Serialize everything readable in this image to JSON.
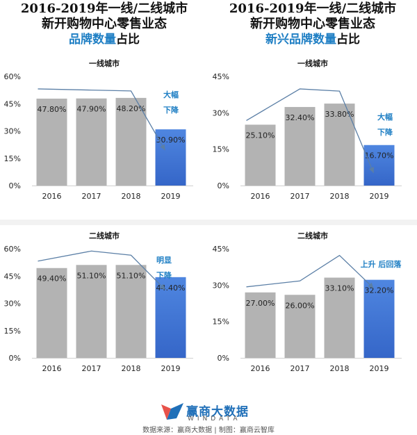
{
  "headings": [
    {
      "line1": "2016-2019年一线/二线城市",
      "line2": "新开购物中心零售业态",
      "line3_highlight": "品牌数量",
      "line3_tail": "占比"
    },
    {
      "line1": "2016-2019年一线/二线城市",
      "line2": "新开购物中心零售业态",
      "line3_highlight": "新兴品牌数量",
      "line3_tail": "占比"
    }
  ],
  "chart_data": [
    {
      "type": "bar",
      "subtitle": "一线城市",
      "categories": [
        "2016",
        "2017",
        "2018",
        "2019"
      ],
      "values": [
        47.8,
        47.9,
        48.2,
        30.9
      ],
      "value_labels": [
        "47.80%",
        "47.90%",
        "48.20%",
        "30.90%"
      ],
      "ylim": [
        0,
        60
      ],
      "yticks": [
        0,
        15,
        30,
        45,
        60
      ],
      "ytick_labels": [
        "0%",
        "15%",
        "30%",
        "45%",
        "60%"
      ],
      "annotation_lines": [
        "大幅",
        "下降"
      ],
      "colors": {
        "bar": "#b3b3b3",
        "highlight_bar": "#3566c8",
        "arrow": "#5b7fa6",
        "annotation": "#1f7fc4"
      }
    },
    {
      "type": "bar",
      "subtitle": "一线城市",
      "categories": [
        "2016",
        "2017",
        "2018",
        "2019"
      ],
      "values": [
        25.1,
        32.4,
        33.8,
        16.7
      ],
      "value_labels": [
        "25.10%",
        "32.40%",
        "33.80%",
        "16.70%"
      ],
      "ylim": [
        0,
        45
      ],
      "yticks": [
        0,
        15,
        30,
        45
      ],
      "ytick_labels": [
        "0%",
        "15%",
        "30%",
        "45%"
      ],
      "annotation_lines": [
        "大幅",
        "下降"
      ],
      "colors": {
        "bar": "#b3b3b3",
        "highlight_bar": "#3566c8",
        "arrow": "#5b7fa6",
        "annotation": "#1f7fc4"
      }
    },
    {
      "type": "bar",
      "subtitle": "二线城市",
      "categories": [
        "2016",
        "2017",
        "2018",
        "2019"
      ],
      "values": [
        49.4,
        51.1,
        51.1,
        44.4
      ],
      "value_labels": [
        "49.40%",
        "51.10%",
        "51.10%",
        "44.40%"
      ],
      "ylim": [
        0,
        60
      ],
      "yticks": [
        0,
        15,
        30,
        45,
        60
      ],
      "ytick_labels": [
        "0%",
        "15%",
        "30%",
        "45%",
        "60%"
      ],
      "annotation_lines": [
        "明显",
        "下降"
      ],
      "colors": {
        "bar": "#b3b3b3",
        "highlight_bar": "#3566c8",
        "arrow": "#5b7fa6",
        "annotation": "#1f7fc4"
      }
    },
    {
      "type": "bar",
      "subtitle": "二线城市",
      "categories": [
        "2016",
        "2017",
        "2018",
        "2019"
      ],
      "values": [
        27.0,
        26.0,
        33.1,
        32.2
      ],
      "value_labels": [
        "27.00%",
        "26.00%",
        "33.10%",
        "32.20%"
      ],
      "ylim": [
        0,
        45
      ],
      "yticks": [
        0,
        15,
        30,
        45
      ],
      "ytick_labels": [
        "0%",
        "15%",
        "30%",
        "45%"
      ],
      "annotation_lines": [
        "上升 后回落"
      ],
      "colors": {
        "bar": "#b3b3b3",
        "highlight_bar": "#3566c8",
        "arrow": "#5b7fa6",
        "annotation": "#1f7fc4"
      }
    }
  ],
  "footer": {
    "logo_cn": "赢商大数据",
    "logo_en": "WINDATA",
    "source": "数据来源：赢商大数据 | 制图：赢商云智库"
  }
}
